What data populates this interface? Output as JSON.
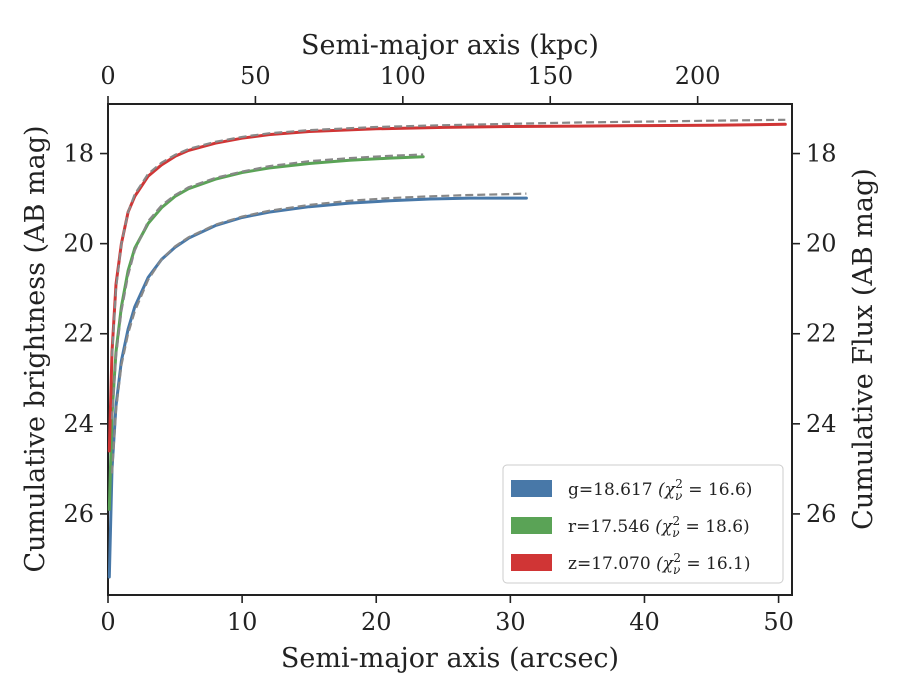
{
  "chart_data": {
    "type": "line",
    "x_label": "Semi-major axis (arcsec)",
    "x_top_label": "Semi-major axis (kpc)",
    "y_label": "Cumulative brightness (AB mag)",
    "y_right_label": "Cumulative Flux (AB mag)",
    "xlim": [
      0,
      51
    ],
    "x_top_lim": [
      0,
      232
    ],
    "ylim": [
      27.8,
      16.9
    ],
    "y_inverted": true,
    "x_ticks": [
      "0",
      "10",
      "20",
      "30",
      "40",
      "50"
    ],
    "x_top_ticks": [
      "0",
      "50",
      "100",
      "150",
      "200"
    ],
    "y_ticks": [
      "18",
      "20",
      "22",
      "24",
      "26"
    ],
    "grid": false,
    "legend_position": "lower-right",
    "series": [
      {
        "name": "g=18.617",
        "chi_label": "(χ",
        "chi_sup": "2",
        "chi_sub": "ν",
        "chi_value": " = 16.6)",
        "color": "#4878a8",
        "x": [
          0.1,
          0.3,
          0.6,
          1,
          1.5,
          2,
          3,
          4,
          5,
          6,
          8,
          10,
          12,
          15,
          18,
          21,
          24,
          27,
          30,
          31.2
        ],
        "y": [
          27.4,
          25.0,
          23.6,
          22.6,
          21.9,
          21.4,
          20.75,
          20.35,
          20.08,
          19.88,
          19.6,
          19.42,
          19.3,
          19.18,
          19.1,
          19.05,
          19.01,
          18.99,
          18.99,
          18.99
        ],
        "model_x": [
          0.3,
          0.6,
          1,
          1.5,
          2,
          3,
          4,
          5,
          6,
          8,
          10,
          12,
          15,
          18,
          21,
          24,
          27,
          30,
          31.2
        ],
        "model_y": [
          25.1,
          23.7,
          22.7,
          22.0,
          21.5,
          20.8,
          20.35,
          20.06,
          19.86,
          19.58,
          19.4,
          19.27,
          19.14,
          19.05,
          18.99,
          18.95,
          18.92,
          18.9,
          18.89
        ]
      },
      {
        "name": "r=17.546",
        "chi_label": "(χ",
        "chi_sup": "2",
        "chi_sub": "ν",
        "chi_value": " = 18.6)",
        "color": "#5aa356",
        "x": [
          0.1,
          0.3,
          0.6,
          1,
          1.5,
          2,
          3,
          4,
          5,
          6,
          8,
          10,
          12,
          15,
          18,
          21,
          23.5
        ],
        "y": [
          25.9,
          23.8,
          22.4,
          21.4,
          20.6,
          20.1,
          19.55,
          19.2,
          18.95,
          18.78,
          18.57,
          18.42,
          18.32,
          18.22,
          18.15,
          18.1,
          18.07
        ],
        "model_x": [
          0.3,
          0.6,
          1,
          1.5,
          2,
          3,
          4,
          5,
          6,
          8,
          10,
          12,
          15,
          18,
          21,
          23.5
        ],
        "model_y": [
          23.9,
          22.5,
          21.5,
          20.7,
          20.15,
          19.5,
          19.15,
          18.92,
          18.75,
          18.54,
          18.4,
          18.28,
          18.17,
          18.1,
          18.05,
          18.02
        ]
      },
      {
        "name": "z=17.070",
        "chi_label": "(χ",
        "chi_sup": "2",
        "chi_sub": "ν",
        "chi_value": " = 16.1)",
        "color": "#d03535",
        "x": [
          0.1,
          0.3,
          0.6,
          1,
          1.5,
          2,
          3,
          4,
          5,
          6,
          8,
          10,
          12,
          15,
          20,
          25,
          30,
          35,
          40,
          45,
          50.5
        ],
        "y": [
          24.6,
          22.4,
          20.9,
          20.0,
          19.3,
          18.95,
          18.5,
          18.25,
          18.06,
          17.93,
          17.77,
          17.66,
          17.58,
          17.51,
          17.45,
          17.42,
          17.4,
          17.39,
          17.38,
          17.37,
          17.35
        ],
        "model_x": [
          0.3,
          0.6,
          1,
          1.5,
          2,
          3,
          4,
          5,
          6,
          8,
          10,
          12,
          15,
          20,
          25,
          30,
          35,
          40,
          45,
          50.5
        ],
        "model_y": [
          22.5,
          21.0,
          20.0,
          19.3,
          18.9,
          18.45,
          18.2,
          18.03,
          17.9,
          17.74,
          17.63,
          17.55,
          17.48,
          17.41,
          17.37,
          17.34,
          17.31,
          17.29,
          17.27,
          17.25
        ]
      }
    ]
  }
}
